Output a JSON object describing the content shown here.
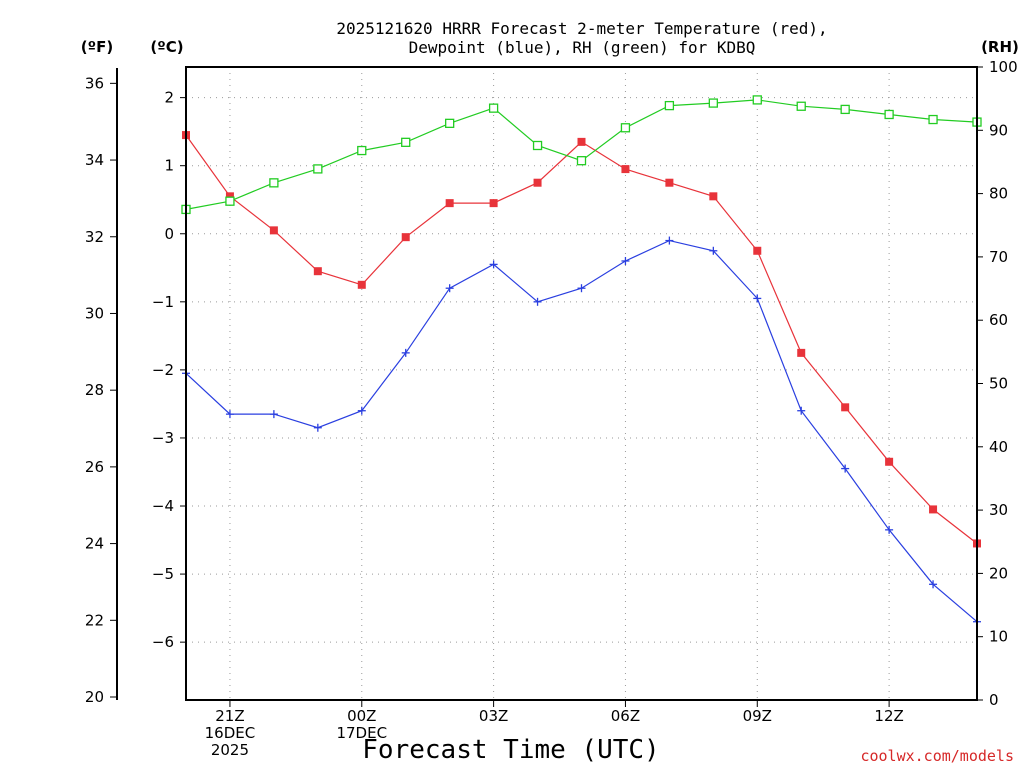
{
  "chart_data": {
    "type": "line",
    "title_line1": "2025121620 HRRR Forecast 2-meter Temperature (red),",
    "title_line2": "Dewpoint (blue), RH (green) for KDBQ",
    "xlabel": "Forecast Time (UTC)",
    "credit": "coolwx.com/models",
    "unit_labels": {
      "fahrenheit": "(ºF)",
      "celsius": "(ºC)",
      "rh": "(RH)"
    },
    "x_hours": [
      20,
      21,
      22,
      23,
      24,
      25,
      26,
      27,
      28,
      29,
      30,
      31,
      32,
      33,
      34,
      35,
      36,
      37,
      38
    ],
    "x_ticks": [
      {
        "hour": 21,
        "lines": [
          "21Z",
          "16DEC",
          "2025"
        ]
      },
      {
        "hour": 24,
        "lines": [
          "00Z",
          "17DEC"
        ]
      },
      {
        "hour": 27,
        "lines": [
          "03Z"
        ]
      },
      {
        "hour": 30,
        "lines": [
          "06Z"
        ]
      },
      {
        "hour": 33,
        "lines": [
          "09Z"
        ]
      },
      {
        "hour": 36,
        "lines": [
          "12Z"
        ]
      }
    ],
    "xlim": [
      20,
      38
    ],
    "celsius_axis": {
      "ylim": [
        -6.85,
        2.45
      ],
      "ticks": [
        2,
        1,
        0,
        -1,
        -2,
        -3,
        -4,
        -5,
        -6
      ]
    },
    "fahrenheit_axis": {
      "ylim": [
        20,
        36.4
      ],
      "ticks": [
        36,
        34,
        32,
        30,
        28,
        26,
        24,
        22,
        20
      ]
    },
    "rh_axis": {
      "ylim": [
        0,
        100
      ],
      "ticks": [
        100,
        90,
        80,
        70,
        60,
        50,
        40,
        30,
        20,
        10,
        0
      ]
    },
    "series": [
      {
        "name": "Temperature",
        "axis": "celsius",
        "color": "#e8333a",
        "marker": "filled-square",
        "values": [
          1.45,
          0.55,
          0.05,
          -0.55,
          -0.75,
          -0.05,
          0.45,
          0.45,
          0.75,
          1.35,
          0.95,
          0.75,
          0.55,
          -0.25,
          -1.75,
          -2.55,
          -3.35,
          -4.05,
          -4.55
        ]
      },
      {
        "name": "Dewpoint",
        "axis": "celsius",
        "color": "#2a3fe0",
        "marker": "plus",
        "values": [
          -2.05,
          -2.65,
          -2.65,
          -2.85,
          -2.6,
          -1.75,
          -0.8,
          -0.45,
          -1.0,
          -0.8,
          -0.4,
          -0.1,
          -0.25,
          -0.95,
          -2.6,
          -3.45,
          -4.35,
          -5.15,
          -5.7
        ]
      },
      {
        "name": "RH",
        "axis": "rh",
        "color": "#22cc22",
        "marker": "open-square",
        "values": [
          77.5,
          78.8,
          81.7,
          83.9,
          86.8,
          88.1,
          91.1,
          93.5,
          87.6,
          85.2,
          90.4,
          93.9,
          94.3,
          94.8,
          93.8,
          93.3,
          92.5,
          91.7,
          91.3
        ]
      }
    ]
  }
}
